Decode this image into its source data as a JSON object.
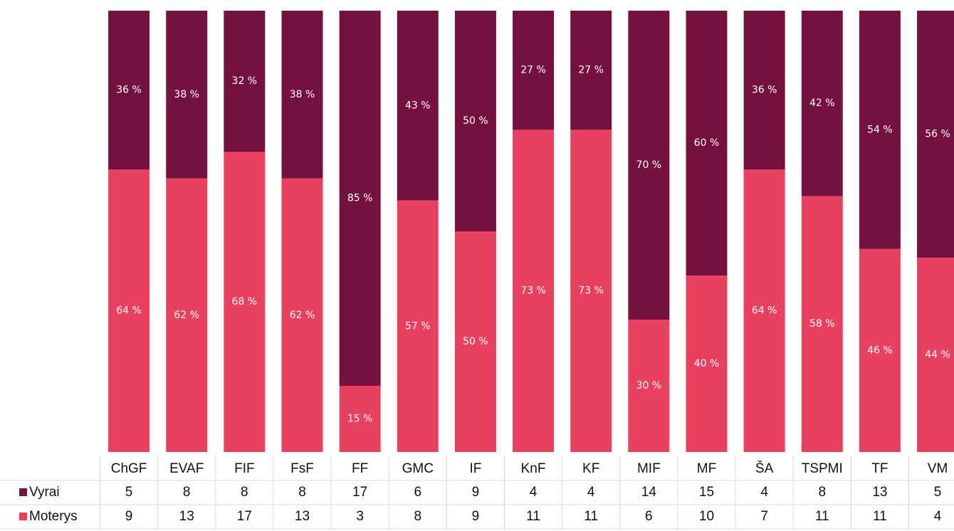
{
  "chart_data": {
    "type": "bar",
    "stacked": true,
    "categories": [
      "ChGF",
      "EVAF",
      "FIF",
      "FsF",
      "FF",
      "GMC",
      "IF",
      "KnF",
      "KF",
      "MIF",
      "MF",
      "ŠA",
      "TSPMI",
      "TF",
      "VM"
    ],
    "ylim": [
      0,
      100
    ],
    "series": [
      {
        "name": "Vyrai",
        "color": "#74113e",
        "values": [
          36,
          38,
          32,
          38,
          85,
          43,
          50,
          27,
          27,
          70,
          60,
          36,
          42,
          54,
          56
        ],
        "value_labels": [
          "36 %",
          "38 %",
          "32 %",
          "38 %",
          "85 %",
          "43 %",
          "50 %",
          "27 %",
          "27 %",
          "70 %",
          "60 %",
          "36 %",
          "42 %",
          "54 %",
          "56 %"
        ],
        "counts": [
          5,
          8,
          8,
          8,
          17,
          6,
          9,
          4,
          4,
          14,
          15,
          4,
          8,
          13,
          5
        ]
      },
      {
        "name": "Moterys",
        "color": "#e8405f",
        "values": [
          64,
          62,
          68,
          62,
          15,
          57,
          50,
          73,
          73,
          30,
          40,
          64,
          58,
          46,
          44
        ],
        "value_labels": [
          "64 %",
          "62 %",
          "68 %",
          "62 %",
          "15 %",
          "57 %",
          "50 %",
          "73 %",
          "73 %",
          "30 %",
          "40 %",
          "64 %",
          "58 %",
          "46 %",
          "44 %"
        ],
        "counts": [
          9,
          13,
          17,
          13,
          3,
          8,
          9,
          11,
          11,
          6,
          10,
          7,
          11,
          11,
          4
        ]
      }
    ]
  }
}
